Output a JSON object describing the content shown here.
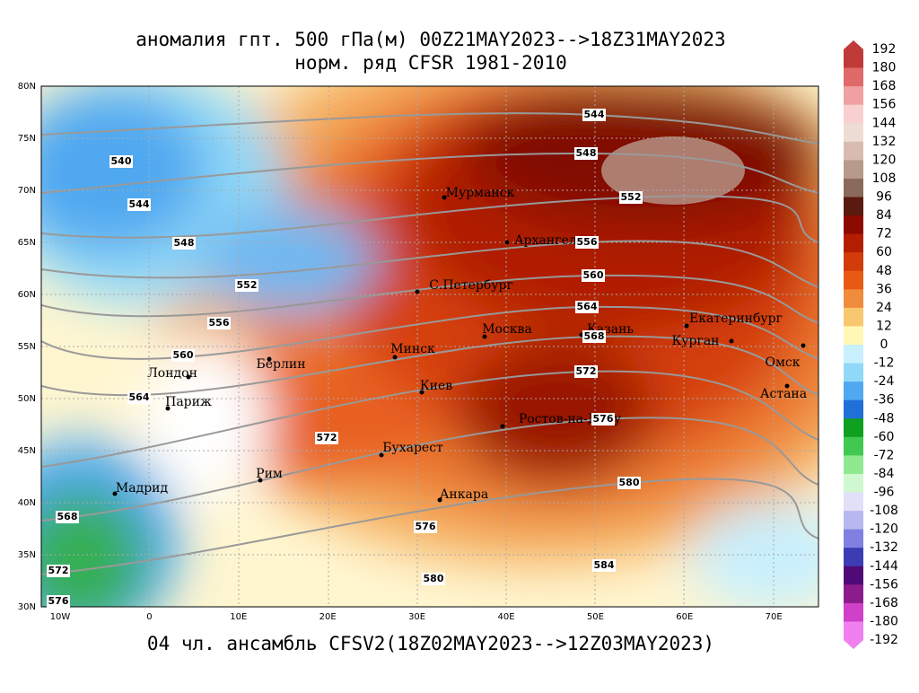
{
  "title": [
    "аномалия гпт. 500 гПа(м) 00Z21MAY2023-->18Z31MAY2023",
    "норм. ряд CFSR 1981-2010"
  ],
  "footer": "04 чл. ансамбль CFSV2(18Z02MAY2023-->12Z03MAY2023)",
  "map": {
    "lon_labels": [
      "10W",
      "0",
      "10E",
      "20E",
      "30E",
      "40E",
      "50E",
      "60E",
      "70E"
    ],
    "lat_labels": [
      "80N",
      "75N",
      "70N",
      "65N",
      "60N",
      "55N",
      "50N",
      "45N",
      "40N",
      "35N",
      "30N"
    ],
    "cities": [
      "Мурманск",
      "Архангельск",
      "С.Петербург",
      "Москва",
      "Казань",
      "Екатеринбург",
      "Курган",
      "Омск",
      "Астана",
      "Минск",
      "Берлин",
      "Лондон",
      "Париж",
      "Киев",
      "Ростов-на-Дону",
      "Бухарест",
      "Рим",
      "Мадрид",
      "Анкара"
    ],
    "contour_labels": [
      544,
      544,
      540,
      548,
      548,
      552,
      552,
      556,
      556,
      560,
      560,
      564,
      564,
      568,
      568,
      572,
      572,
      572,
      576,
      576,
      576,
      580,
      580,
      584
    ]
  },
  "colorbar": {
    "labels": [
      192,
      180,
      168,
      156,
      144,
      132,
      120,
      108,
      96,
      84,
      72,
      60,
      48,
      36,
      24,
      12,
      0,
      -12,
      -24,
      -36,
      -48,
      -60,
      -72,
      -84,
      -96,
      -108,
      -120,
      -132,
      -144,
      -156,
      -168,
      -180,
      -192
    ],
    "colors": [
      "#c03a3a",
      "#e06a6a",
      "#f0a0a0",
      "#f8d0d0",
      "#eedcd4",
      "#d8bcb0",
      "#b89a8c",
      "#8a6a5a",
      "#5a1a10",
      "#8c0a00",
      "#b41e00",
      "#d23c0a",
      "#e85a14",
      "#f08c3c",
      "#f8c870",
      "#fff8b4",
      "#c8f0ff",
      "#90d8f8",
      "#50a8f0",
      "#2070d8",
      "#10a020",
      "#40c850",
      "#90e890",
      "#d0f8d0",
      "#e0e0f8",
      "#b8b8f0",
      "#8080e0",
      "#3c3cb4",
      "#500a78",
      "#8c1c8c",
      "#d040c8",
      "#f080f0"
    ]
  }
}
